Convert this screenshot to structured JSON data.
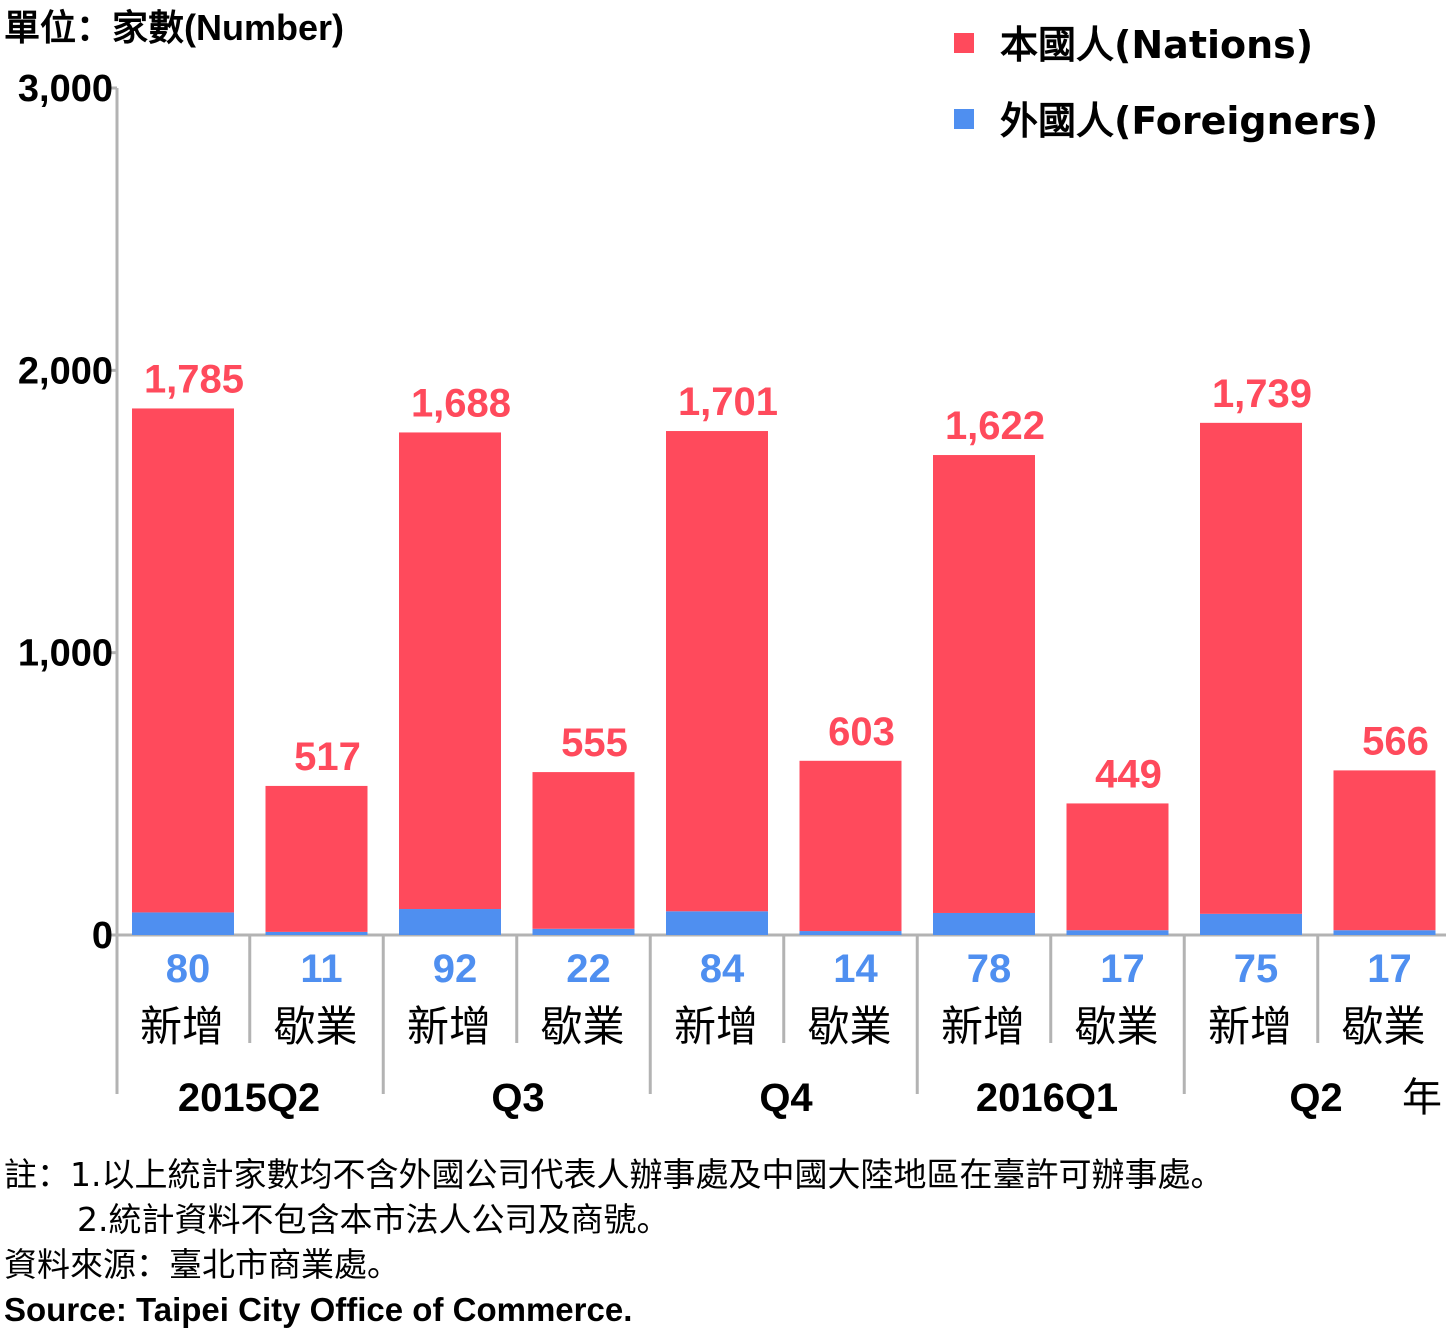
{
  "chart_data": {
    "type": "bar",
    "stacked": true,
    "unit_label": "單位：家數(Number)",
    "year_label": "年",
    "ylim": [
      0,
      3000
    ],
    "yticks": [
      "0",
      "1,000",
      "2,000",
      "3,000"
    ],
    "ytick_values": [
      0,
      1000,
      2000,
      3000
    ],
    "categories": [
      "新增",
      "歇業",
      "新增",
      "歇業",
      "新增",
      "歇業",
      "新增",
      "歇業",
      "新增",
      "歇業"
    ],
    "groups": [
      "2015Q2",
      "Q3",
      "Q4",
      "2016Q1",
      "Q2"
    ],
    "series": [
      {
        "name": "外國人(Foreigners)",
        "color": "#4f8ff0",
        "values": [
          80,
          11,
          92,
          22,
          84,
          14,
          78,
          17,
          75,
          17
        ],
        "labels": [
          "80",
          "11",
          "92",
          "22",
          "84",
          "14",
          "78",
          "17",
          "75",
          "17"
        ]
      },
      {
        "name": "本國人(Nations)",
        "color": "#ff4a5c",
        "values": [
          1785,
          517,
          1688,
          555,
          1701,
          603,
          1622,
          449,
          1739,
          566
        ],
        "labels": [
          "1,785",
          "517",
          "1,688",
          "555",
          "1,701",
          "603",
          "1,622",
          "449",
          "1,739",
          "566"
        ]
      }
    ],
    "legend_position": "top-right",
    "grid": false
  },
  "notes": {
    "note1": "註：1.以上統計家數均不含外國公司代表人辦事處及中國大陸地區在臺許可辦事處。",
    "note2": "2.統計資料不包含本市法人公司及商號。",
    "source_zh": "資料來源：臺北市商業處。",
    "source_en": "Source: Taipei City Office of Commerce."
  }
}
